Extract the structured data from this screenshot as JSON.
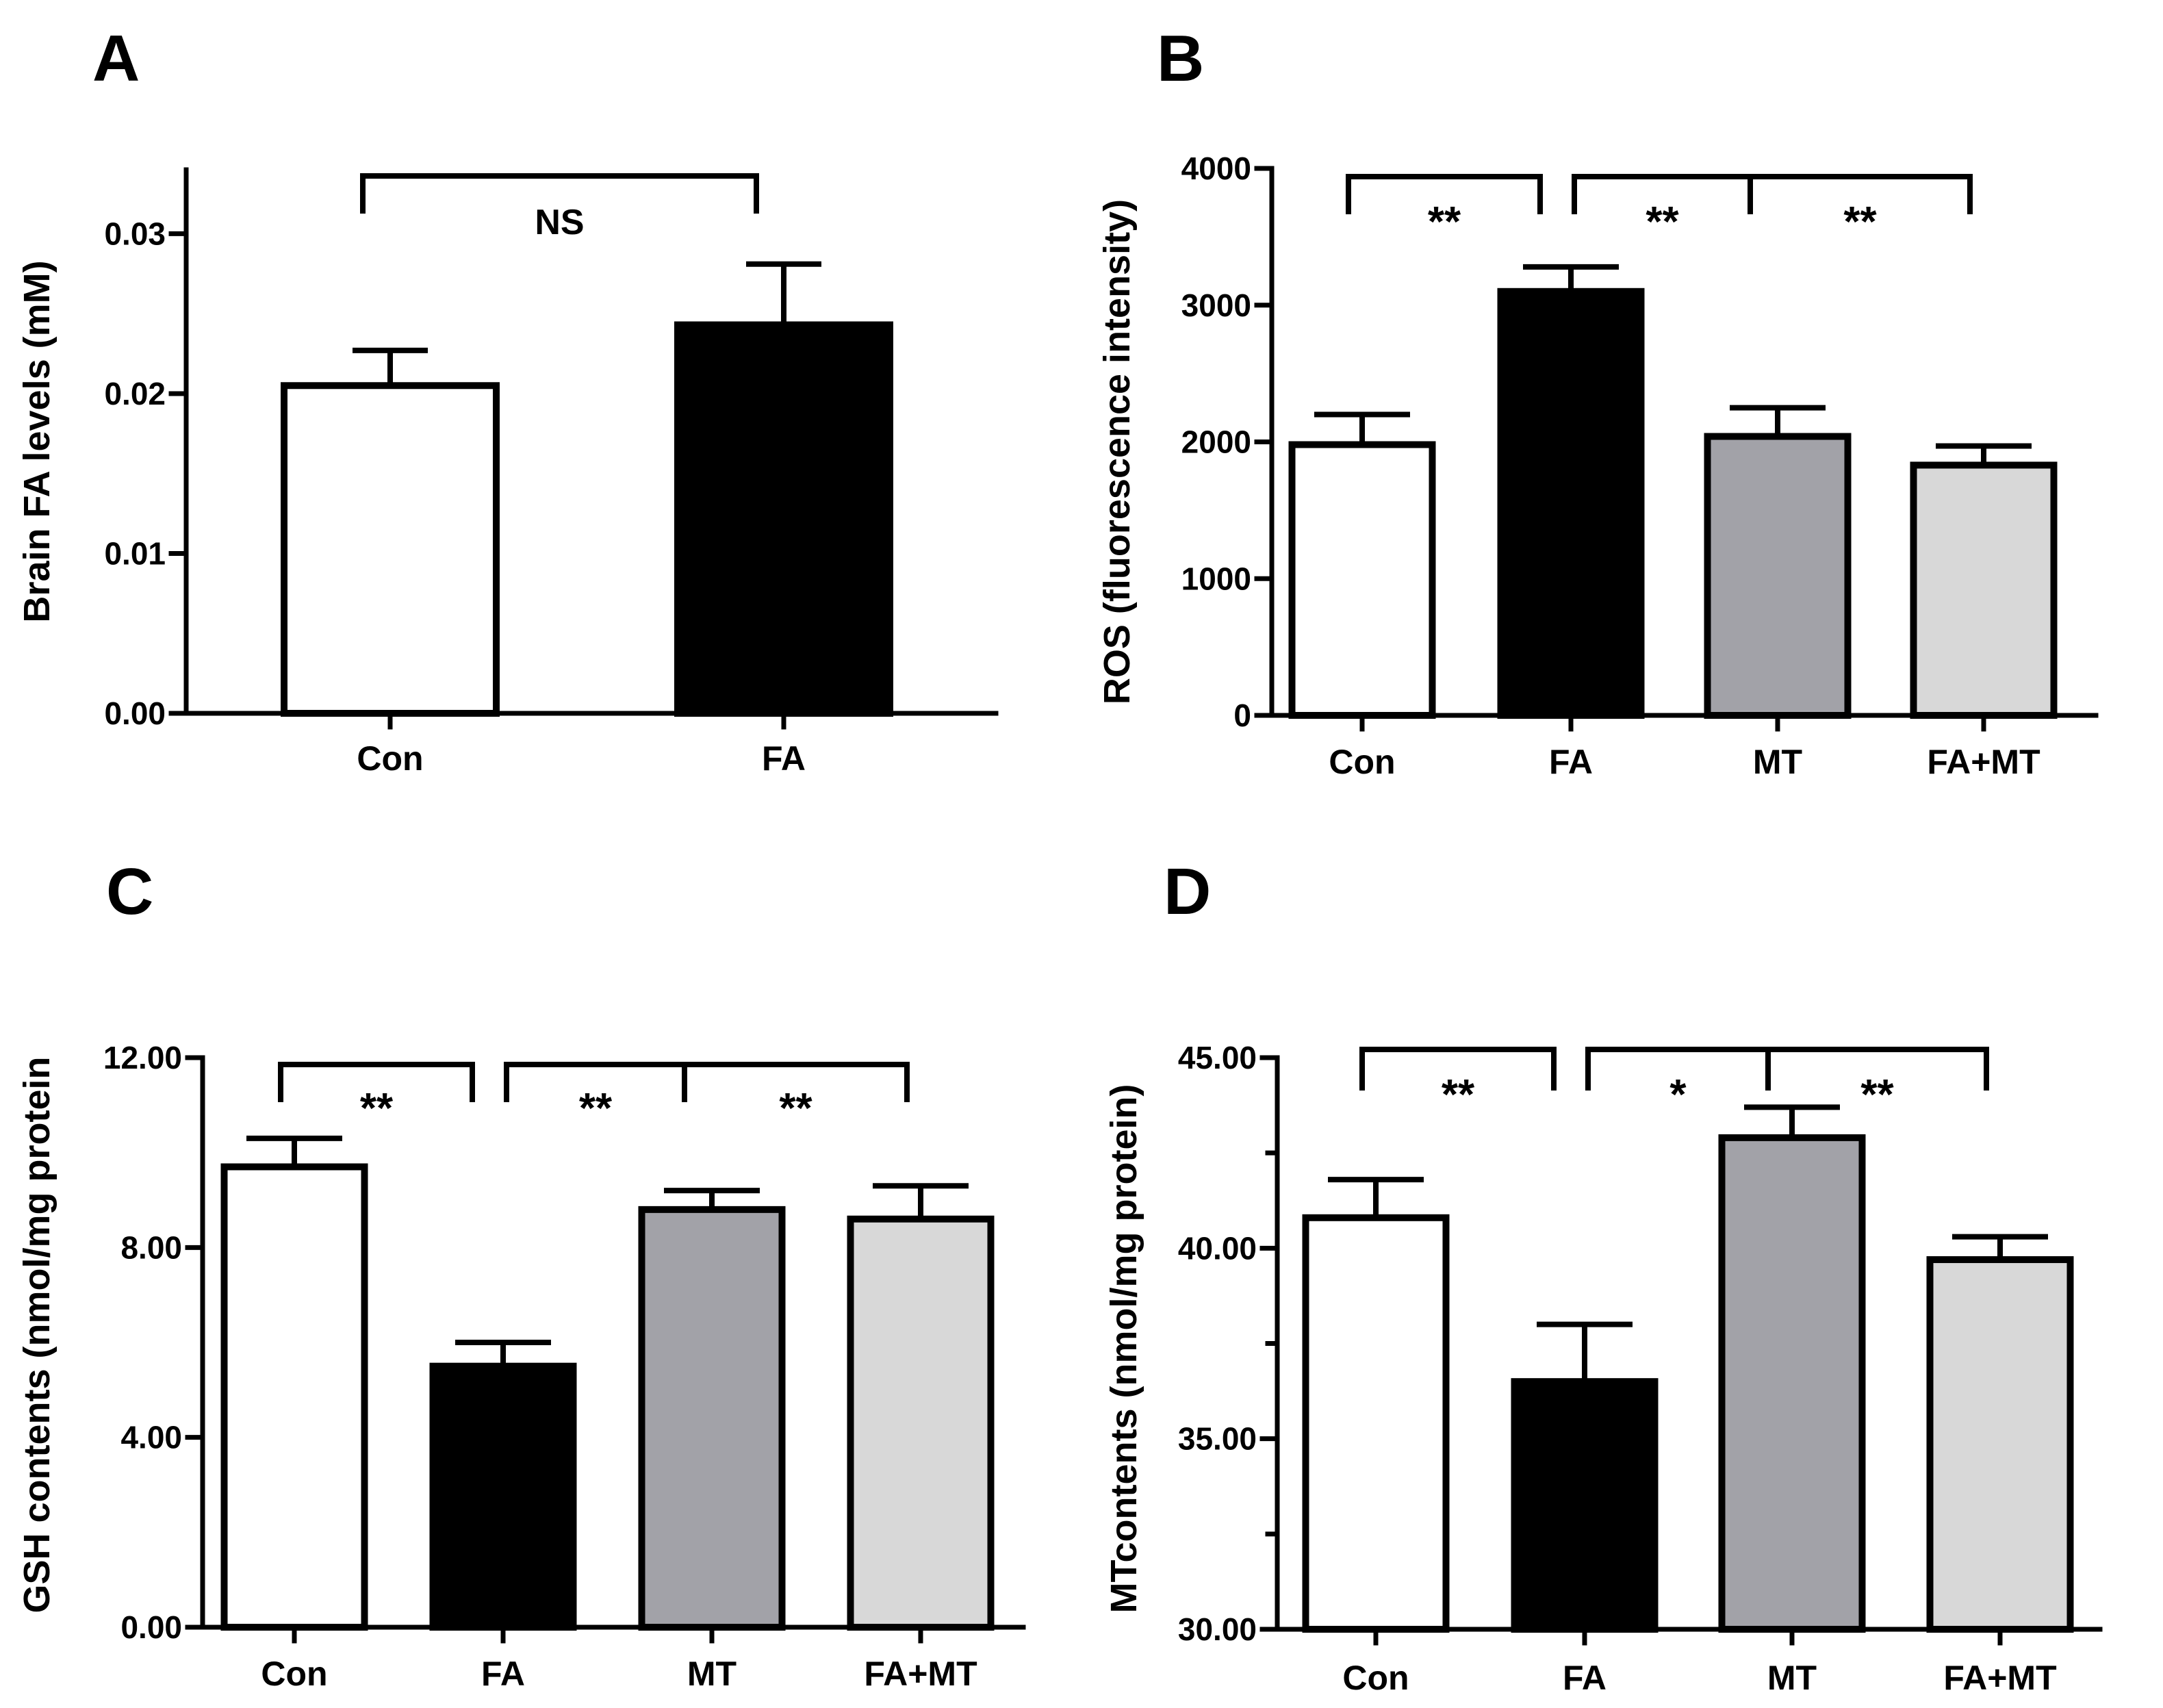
{
  "figure_type": "multi-panel bar charts",
  "chart_data": [
    {
      "panel": "A",
      "type": "bar",
      "categories": [
        "Con",
        "FA"
      ],
      "values": [
        0.0205,
        0.0243
      ],
      "errors": [
        0.0022,
        0.0038
      ],
      "colors": [
        "#ffffff",
        "#000000"
      ],
      "ylabel": "Brain FA levels (mM)",
      "ylim": [
        0,
        0.034
      ],
      "yticks": [
        "0.00",
        "0.01",
        "0.02",
        "0.03"
      ],
      "ytick_values": [
        0,
        0.01,
        0.02,
        0.03
      ],
      "significance": [
        {
          "from": 0,
          "to": 1,
          "label": "NS"
        }
      ]
    },
    {
      "panel": "B",
      "type": "bar",
      "categories": [
        "Con",
        "FA",
        "MT",
        "FA+MT"
      ],
      "values": [
        1980,
        3100,
        2040,
        1830
      ],
      "errors": [
        220,
        180,
        210,
        140
      ],
      "colors": [
        "#ffffff",
        "#000000",
        "#a2a2a8",
        "#d8d8d8"
      ],
      "ylabel": "ROS (fluorescence intensity)",
      "ylim": [
        0,
        4000
      ],
      "yticks": [
        "0",
        "1000",
        "2000",
        "3000",
        "4000"
      ],
      "ytick_values": [
        0,
        1000,
        2000,
        3000,
        4000
      ],
      "significance": [
        {
          "from": 0,
          "to": 1,
          "label": "**"
        },
        {
          "from": 1,
          "to": 2,
          "label": "**"
        },
        {
          "from": 2,
          "to": 3,
          "label": "**"
        }
      ]
    },
    {
      "panel": "C",
      "type": "bar",
      "categories": [
        "Con",
        "FA",
        "MT",
        "FA+MT"
      ],
      "values": [
        9.7,
        5.5,
        8.8,
        8.6
      ],
      "errors": [
        0.6,
        0.5,
        0.4,
        0.7
      ],
      "colors": [
        "#ffffff",
        "#000000",
        "#a2a2a8",
        "#d8d8d8"
      ],
      "ylabel": "GSH contents (nmol/mg protein",
      "ylim": [
        0,
        12
      ],
      "yticks": [
        "0.00",
        "4.00",
        "8.00",
        "12.00"
      ],
      "ytick_values": [
        0,
        4,
        8,
        12
      ],
      "significance": [
        {
          "from": 0,
          "to": 1,
          "label": "**"
        },
        {
          "from": 1,
          "to": 2,
          "label": "**"
        },
        {
          "from": 2,
          "to": 3,
          "label": "**"
        }
      ]
    },
    {
      "panel": "D",
      "type": "bar",
      "categories": [
        "Con",
        "FA",
        "MT",
        "FA+MT"
      ],
      "values": [
        40.8,
        36.5,
        42.9,
        39.7
      ],
      "errors": [
        1.0,
        1.5,
        0.8,
        0.6
      ],
      "colors": [
        "#ffffff",
        "#000000",
        "#a2a2a8",
        "#d8d8d8"
      ],
      "ylabel": "MTcontents (nmol/mg protein)",
      "ylim": [
        30,
        45
      ],
      "yticks": [
        "30.00",
        "35.00",
        "40.00",
        "45.00"
      ],
      "ytick_values": [
        30,
        35,
        40,
        45
      ],
      "significance": [
        {
          "from": 0,
          "to": 1,
          "label": "**"
        },
        {
          "from": 1,
          "to": 2,
          "label": "*"
        },
        {
          "from": 2,
          "to": 3,
          "label": "**"
        }
      ]
    }
  ]
}
